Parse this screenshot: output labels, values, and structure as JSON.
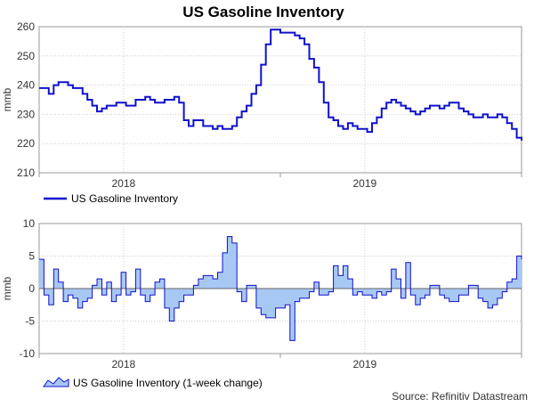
{
  "chart_data": [
    {
      "type": "line",
      "title": "US Gasoline Inventory",
      "ylabel": "mmb",
      "ylim": [
        210,
        260
      ],
      "yticks": [
        210,
        220,
        230,
        240,
        250,
        260
      ],
      "x_ticks": [
        "2018",
        "2019"
      ],
      "x_tick_values": [
        0.35,
        1.35
      ],
      "grid": true,
      "legend": "bottom-left",
      "color": "#1010cc",
      "series": [
        {
          "name": "US Gasoline Inventory",
          "x": [
            0.0,
            0.02,
            0.04,
            0.06,
            0.08,
            0.1,
            0.12,
            0.14,
            0.16,
            0.18,
            0.2,
            0.22,
            0.24,
            0.26,
            0.28,
            0.3,
            0.32,
            0.34,
            0.36,
            0.38,
            0.4,
            0.42,
            0.44,
            0.46,
            0.48,
            0.5,
            0.52,
            0.54,
            0.56,
            0.58,
            0.6,
            0.62,
            0.64,
            0.66,
            0.68,
            0.7,
            0.72,
            0.74,
            0.76,
            0.78,
            0.8,
            0.82,
            0.84,
            0.86,
            0.88,
            0.9,
            0.92,
            0.94,
            0.96,
            0.98,
            1.0,
            1.02,
            1.04,
            1.06,
            1.08,
            1.1,
            1.12,
            1.14,
            1.16,
            1.18,
            1.2,
            1.22,
            1.24,
            1.26,
            1.28,
            1.3,
            1.32,
            1.34,
            1.36,
            1.38,
            1.4,
            1.42,
            1.44,
            1.46,
            1.48,
            1.5,
            1.52,
            1.54,
            1.56,
            1.58,
            1.6,
            1.62,
            1.64,
            1.66,
            1.68,
            1.7,
            1.72,
            1.74,
            1.76,
            1.78,
            1.8,
            1.82,
            1.84,
            1.86,
            1.88,
            1.9,
            1.92,
            1.94,
            1.96,
            1.98,
            2.0
          ],
          "y": [
            239,
            239,
            237,
            240,
            241,
            241,
            240,
            239,
            239,
            237,
            235,
            233,
            231,
            232,
            233,
            233,
            234,
            234,
            233,
            233,
            235,
            235,
            236,
            235,
            234,
            234,
            235,
            235,
            236,
            234,
            228,
            226,
            228,
            228,
            226,
            226,
            225,
            226,
            225,
            225,
            226,
            229,
            231,
            233,
            237,
            240,
            247,
            254,
            259,
            259,
            258,
            258,
            258,
            257,
            256,
            254,
            249,
            246,
            241,
            234,
            229,
            228,
            226,
            225,
            227,
            226,
            225,
            225,
            224,
            227,
            229,
            232,
            234,
            235,
            234,
            233,
            232,
            231,
            230,
            231,
            232,
            233,
            233,
            232,
            233,
            234,
            234,
            232,
            231,
            230,
            229,
            229,
            230,
            229,
            229,
            230,
            229,
            227,
            225,
            222,
            221
          ]
        }
      ]
    },
    {
      "type": "area",
      "ylabel": "mmb",
      "ylim": [
        -10,
        10
      ],
      "yticks": [
        -10,
        -5,
        0,
        5,
        10
      ],
      "x_ticks": [
        "2018",
        "2019"
      ],
      "x_tick_values": [
        0.35,
        1.35
      ],
      "grid": true,
      "legend": "bottom-left",
      "line_color": "#1010cc",
      "fill_color": "#a8c8f4",
      "series": [
        {
          "name": "US Gasoline Inventory (1-week change)",
          "x": [
            0.0,
            0.02,
            0.04,
            0.06,
            0.08,
            0.1,
            0.12,
            0.14,
            0.16,
            0.18,
            0.2,
            0.22,
            0.24,
            0.26,
            0.28,
            0.3,
            0.32,
            0.34,
            0.36,
            0.38,
            0.4,
            0.42,
            0.44,
            0.46,
            0.48,
            0.5,
            0.52,
            0.54,
            0.56,
            0.58,
            0.6,
            0.62,
            0.64,
            0.66,
            0.68,
            0.7,
            0.72,
            0.74,
            0.76,
            0.78,
            0.8,
            0.82,
            0.84,
            0.86,
            0.88,
            0.9,
            0.92,
            0.94,
            0.96,
            0.98,
            1.0,
            1.02,
            1.04,
            1.06,
            1.08,
            1.1,
            1.12,
            1.14,
            1.16,
            1.18,
            1.2,
            1.22,
            1.24,
            1.26,
            1.28,
            1.3,
            1.32,
            1.34,
            1.36,
            1.38,
            1.4,
            1.42,
            1.44,
            1.46,
            1.48,
            1.5,
            1.52,
            1.54,
            1.56,
            1.58,
            1.6,
            1.62,
            1.64,
            1.66,
            1.68,
            1.7,
            1.72,
            1.74,
            1.76,
            1.78,
            1.8,
            1.82,
            1.84,
            1.86,
            1.88,
            1.9,
            1.92,
            1.94,
            1.96,
            1.98,
            2.0
          ],
          "y": [
            4.5,
            -1.0,
            -2.5,
            3.0,
            1.0,
            -2.0,
            -1.0,
            -1.5,
            -3.0,
            -2.0,
            -1.5,
            0.5,
            1.5,
            -1.0,
            1.0,
            -2.0,
            -1.0,
            2.5,
            -1.0,
            -0.5,
            3.0,
            -1.0,
            -2.0,
            -1.0,
            1.0,
            1.5,
            -3.0,
            -5.0,
            -3.0,
            -2.0,
            -1.0,
            -1.0,
            0.5,
            1.5,
            2.0,
            2.0,
            1.5,
            2.5,
            5.5,
            8.0,
            7.0,
            -0.5,
            -2.0,
            0.5,
            0.5,
            -3.0,
            -4.0,
            -4.5,
            -4.5,
            -3.0,
            -3.0,
            -2.5,
            -8.0,
            -2.0,
            -1.5,
            -1.5,
            -0.5,
            1.0,
            -1.0,
            -1.0,
            -0.5,
            3.5,
            2.0,
            3.5,
            1.5,
            -1.0,
            -0.5,
            -1.0,
            -1.0,
            -1.5,
            -0.5,
            -1.0,
            -0.5,
            3.0,
            1.5,
            -1.5,
            4.0,
            -1.0,
            -2.5,
            -1.5,
            -1.0,
            0.5,
            0.5,
            -1.0,
            -1.5,
            -2.0,
            -2.0,
            -1.0,
            -1.0,
            0.5,
            0.5,
            -1.5,
            -2.0,
            -3.0,
            -2.5,
            -1.5,
            -0.5,
            1.0,
            1.5,
            5.0,
            4.5
          ]
        }
      ]
    }
  ],
  "source": "Source: Refinitiv Datastream"
}
